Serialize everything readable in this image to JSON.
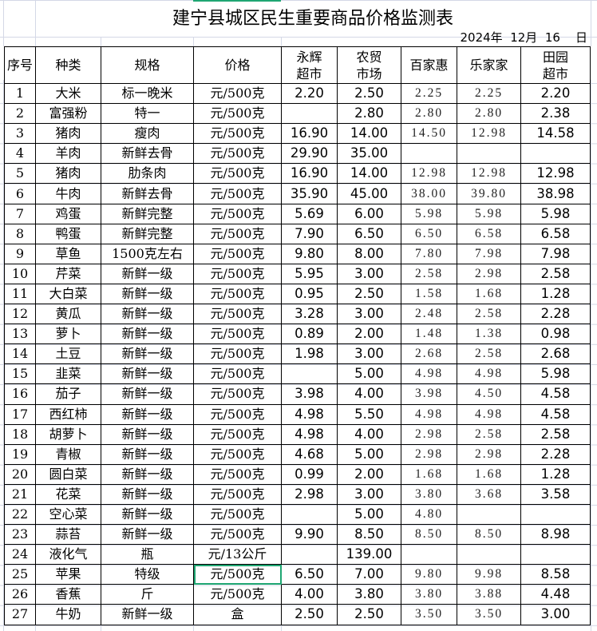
{
  "title": "建宁县城区民生重要商品价格监测表",
  "date": "2024年  12月  16    日",
  "headers": [
    "序号",
    "种类",
    "规格",
    "价格",
    "永辉超市",
    "农贸市场",
    "百家惠",
    "乐家家",
    "田园超市"
  ],
  "header_lines": {
    "yonghui": [
      "永辉",
      "超市"
    ],
    "nongmao": [
      "农贸",
      "市场"
    ],
    "tianyuan": [
      "田园",
      "超市"
    ]
  },
  "selected_cell": {
    "row": 25,
    "column": "价格"
  },
  "accent_color": "#1fa672",
  "rows": [
    [
      "1",
      "大米",
      "标一晚米",
      "元/500克",
      "2.20",
      "2.50",
      "2.25",
      "2.25",
      "2.20"
    ],
    [
      "2",
      "富强粉",
      "特一",
      "元/500克",
      "",
      "2.80",
      "2.80",
      "2.80",
      "2.38"
    ],
    [
      "3",
      "猪肉",
      "瘦肉",
      "元/500克",
      "16.90",
      "14.00",
      "14.50",
      "12.98",
      "14.58"
    ],
    [
      "4",
      "羊肉",
      "新鲜去骨",
      "元/500克",
      "29.90",
      "35.00",
      "",
      "",
      ""
    ],
    [
      "5",
      "猪肉",
      "肋条肉",
      "元/500克",
      "16.90",
      "14.00",
      "12.98",
      "12.98",
      "12.98"
    ],
    [
      "6",
      "牛肉",
      "新鲜去骨",
      "元/500克",
      "35.90",
      "45.00",
      "38.00",
      "39.80",
      "38.98"
    ],
    [
      "7",
      "鸡蛋",
      "新鲜完整",
      "元/500克",
      "5.69",
      "6.00",
      "5.98",
      "5.98",
      "5.98"
    ],
    [
      "8",
      "鸭蛋",
      "新鲜完整",
      "元/500克",
      "7.90",
      "6.50",
      "6.50",
      "6.58",
      "6.58"
    ],
    [
      "9",
      "草鱼",
      "1500克左右",
      "元/500克",
      "9.80",
      "8.00",
      "7.80",
      "7.98",
      "7.98"
    ],
    [
      "10",
      "芹菜",
      "新鲜一级",
      "元/500克",
      "5.95",
      "3.00",
      "2.58",
      "2.98",
      "2.58"
    ],
    [
      "11",
      "大白菜",
      "新鲜一级",
      "元/500克",
      "0.95",
      "2.50",
      "1.58",
      "1.68",
      "1.28"
    ],
    [
      "12",
      "黄瓜",
      "新鲜一级",
      "元/500克",
      "3.28",
      "3.00",
      "2.48",
      "2.58",
      "2.28"
    ],
    [
      "13",
      "萝卜",
      "新鲜一级",
      "元/500克",
      "0.89",
      "2.00",
      "1.48",
      "1.38",
      "0.98"
    ],
    [
      "14",
      "土豆",
      "新鲜一级",
      "元/500克",
      "1.98",
      "3.00",
      "2.68",
      "2.58",
      "2.68"
    ],
    [
      "15",
      "韭菜",
      "新鲜一级",
      "元/500克",
      "",
      "5.00",
      "4.98",
      "4.98",
      "5.98"
    ],
    [
      "16",
      "茄子",
      "新鲜一级",
      "元/500克",
      "3.98",
      "4.00",
      "3.98",
      "4.50",
      "4.58"
    ],
    [
      "17",
      "西红柿",
      "新鲜一级",
      "元/500克",
      "4.98",
      "5.50",
      "4.98",
      "4.98",
      "4.58"
    ],
    [
      "18",
      "胡萝卜",
      "新鲜一级",
      "元/500克",
      "4.98",
      "4.00",
      "2.98",
      "2.58",
      "2.58"
    ],
    [
      "19",
      "青椒",
      "新鲜一级",
      "元/500克",
      "4.68",
      "5.00",
      "2.98",
      "2.98",
      "2.28"
    ],
    [
      "20",
      "圆白菜",
      "新鲜一级",
      "元/500克",
      "0.99",
      "2.00",
      "1.68",
      "1.68",
      "1.28"
    ],
    [
      "21",
      "花菜",
      "新鲜一级",
      "元/500克",
      "2.98",
      "3.00",
      "3.80",
      "3.68",
      "3.58"
    ],
    [
      "22",
      "空心菜",
      "新鲜一级",
      "元/500克",
      "",
      "5.00",
      "4.80",
      "",
      ""
    ],
    [
      "23",
      "蒜苔",
      "新鲜一级",
      "元/500克",
      "9.90",
      "8.50",
      "8.50",
      "8.50",
      "8.98"
    ],
    [
      "24",
      "液化气",
      "瓶",
      "元/13公斤",
      "",
      "139.00",
      "",
      "",
      ""
    ],
    [
      "25",
      "苹果",
      "特级",
      "元/500克",
      "6.50",
      "7.00",
      "9.80",
      "9.98",
      "8.58"
    ],
    [
      "26",
      "香蕉",
      "斤",
      "元/500克",
      "4.00",
      "3.80",
      "3.80",
      "3.88",
      "4.48"
    ],
    [
      "27",
      "牛奶",
      "新鲜一级",
      "盒",
      "2.50",
      "2.50",
      "3.50",
      "3.50",
      "3.00"
    ]
  ]
}
